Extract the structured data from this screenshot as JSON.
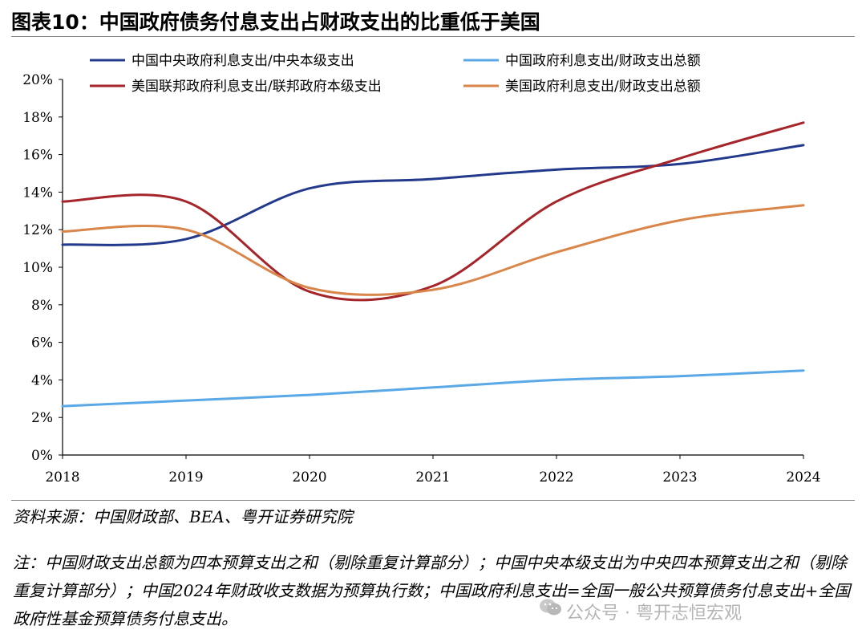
{
  "title": "图表10：中国政府债务付息支出占财政支出的比重低于美国",
  "source": "资料来源：中国财政部、BEA、粤开证券研究院",
  "note": "注：中国财政支出总额为四本预算支出之和（剔除重复计算部分）；中国中央本级支出为中央四本预算支出之和（剔除重复计算部分）；中国2024年财政收支数据为预算执行数；中国政府利息支出=全国一般公共预算债务付息支出+全国政府性基金预算债务付息支出。",
  "watermark": "公众号 · 粤开志恒宏观",
  "colors": {
    "navy": "#233a8c",
    "light_blue": "#5aa9e6",
    "dark_red": "#a5252a",
    "orange": "#d9864a"
  },
  "chart_data": {
    "type": "line",
    "title": "",
    "xlabel": "",
    "ylabel": "",
    "x": [
      2018,
      2019,
      2020,
      2021,
      2022,
      2023,
      2024
    ],
    "x_tick_labels": [
      "2018",
      "2019",
      "2020",
      "2021",
      "2022",
      "2023",
      "2024"
    ],
    "y_tick_labels": [
      "0%",
      "2%",
      "4%",
      "6%",
      "8%",
      "10%",
      "12%",
      "14%",
      "16%",
      "18%",
      "20%"
    ],
    "ylim": [
      0,
      20
    ],
    "y_unit": "%",
    "grid": false,
    "legend_position": "top",
    "series": [
      {
        "name": "中国中央政府利息支出/中央本级支出",
        "color": "#233a8c",
        "values": [
          11.2,
          11.5,
          14.2,
          14.7,
          15.2,
          15.5,
          16.5
        ]
      },
      {
        "name": "中国政府利息支出/财政支出总额",
        "color": "#5aa9e6",
        "values": [
          2.6,
          2.9,
          3.2,
          3.6,
          4.0,
          4.2,
          4.5
        ]
      },
      {
        "name": "美国联邦政府利息支出/联邦政府本级支出",
        "color": "#a5252a",
        "values": [
          13.5,
          13.5,
          8.7,
          9.0,
          13.5,
          15.8,
          17.7
        ]
      },
      {
        "name": "美国政府利息支出/财政支出总额",
        "color": "#d9864a",
        "values": [
          11.9,
          12.0,
          8.9,
          8.8,
          10.8,
          12.5,
          13.3
        ]
      }
    ]
  }
}
